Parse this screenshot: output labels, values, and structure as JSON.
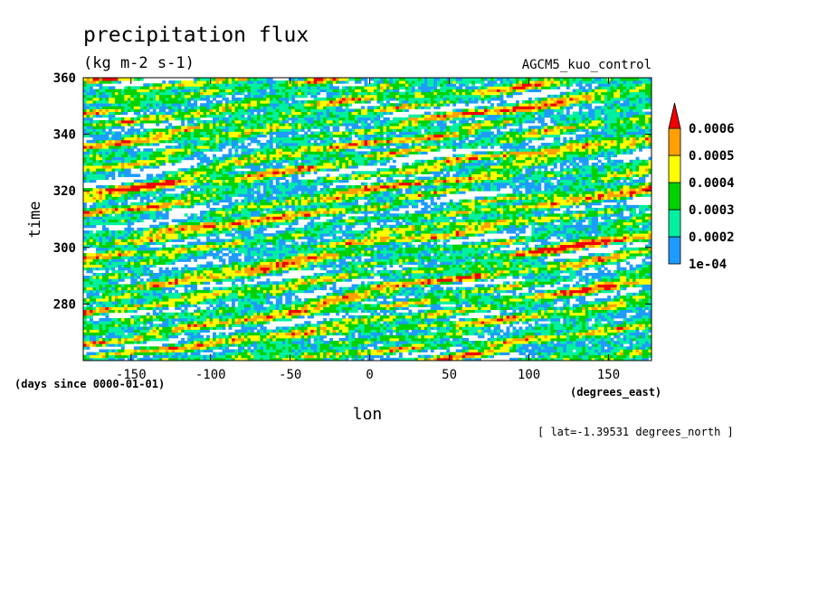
{
  "chart_data": {
    "type": "heatmap",
    "title": "precipitation flux",
    "units_line": "(kg m-2 s-1)",
    "model_label": "AGCM5_kuo_control",
    "xlabel": "lon",
    "x_units": "(degrees_east)",
    "ylabel": "time",
    "y_units": "(days since 0000-01-01)",
    "footer": "[ lat=-1.39531 degrees_north ]",
    "xlim": [
      -180,
      177
    ],
    "ylim": [
      260,
      360
    ],
    "x_ticks": [
      -150,
      -100,
      -50,
      0,
      50,
      100,
      150
    ],
    "x_tick_labels": [
      "-150",
      "-100",
      "-50",
      "0",
      "50",
      "100",
      "150"
    ],
    "y_ticks": [
      280,
      300,
      320,
      340,
      360
    ],
    "y_tick_labels": [
      "280",
      "300",
      "320",
      "340",
      "360"
    ],
    "grid": false,
    "colorbar": {
      "placement": "right",
      "levels": [
        0.0001,
        0.0002,
        0.0003,
        0.0004,
        0.0005,
        0.0006
      ],
      "labels": [
        "1e-04",
        "0.0002",
        "0.0003",
        "0.0004",
        "0.0005",
        "0.0006"
      ],
      "colors": [
        "#1e9bff",
        "#00f0a0",
        "#00d200",
        "#ffff00",
        "#ffa000",
        "#f00000"
      ],
      "extend": "max"
    }
  }
}
